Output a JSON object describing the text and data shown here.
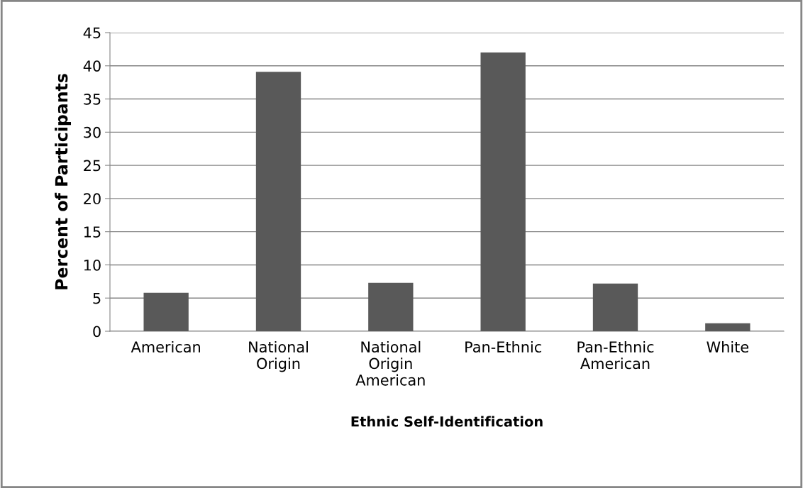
{
  "chart_data": {
    "type": "bar",
    "xlabel": "Ethnic Self-Identification",
    "ylabel": "Percent of Participants",
    "categories": [
      "American",
      "National Origin",
      "National Origin American",
      "Pan-Ethnic",
      "Pan-Ethnic American",
      "White"
    ],
    "values": [
      5.8,
      39.1,
      7.3,
      42.0,
      7.2,
      1.2
    ],
    "color": "#595959",
    "ylim": [
      0,
      45
    ],
    "yticks": [
      0,
      5,
      10,
      15,
      20,
      25,
      30,
      35,
      40,
      45
    ],
    "grid": "y"
  }
}
